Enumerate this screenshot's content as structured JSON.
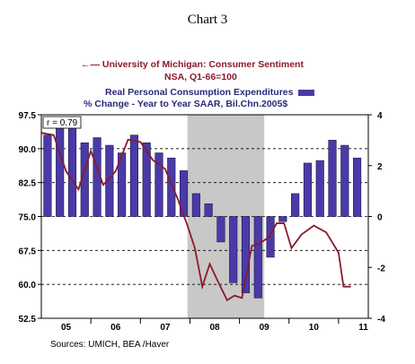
{
  "title": "Chart 3",
  "legend": {
    "line_label": "University of Michigan: Consumer Sentiment",
    "line_sub": "NSA, Q1-66=100",
    "bar_label": "Real Personal Consumption Expenditures",
    "bar_sub": "% Change - Year to Year   SAAR, Bil.Chn.2005$"
  },
  "source": "Sources:  UMICH, BEA /Haver",
  "annotation": "r = 0.79",
  "colors": {
    "line": "#8b1a2b",
    "bar": "#4a3aa8",
    "recession": "#c8c8c8"
  },
  "chart_data": {
    "type": "bar",
    "x_labels": [
      "05",
      "06",
      "07",
      "08",
      "09",
      "10",
      "11"
    ],
    "left_axis": {
      "ticks": [
        "97.5",
        "90.0",
        "82.5",
        "75.0",
        "67.5",
        "60.0",
        "52.5"
      ],
      "ylim": [
        52.5,
        97.5
      ]
    },
    "right_axis": {
      "ticks": [
        "4",
        "2",
        "0",
        "-2",
        "-4"
      ],
      "ylim": [
        -4,
        4
      ]
    },
    "recession_shading": {
      "start": 2007.95,
      "end": 2009.5
    },
    "series": [
      {
        "name": "Real Personal Consumption Expenditures",
        "type": "bar",
        "axis": "right",
        "x": [
          2005.125,
          2005.375,
          2005.625,
          2005.875,
          2006.125,
          2006.375,
          2006.625,
          2006.875,
          2007.125,
          2007.375,
          2007.625,
          2007.875,
          2008.125,
          2008.375,
          2008.625,
          2008.875,
          2009.125,
          2009.375,
          2009.625,
          2009.875,
          2010.125,
          2010.375,
          2010.625,
          2010.875,
          2011.125,
          2011.375
        ],
        "values": [
          3.2,
          3.5,
          3.5,
          2.9,
          3.1,
          2.8,
          2.5,
          3.2,
          2.9,
          2.5,
          2.3,
          1.8,
          0.9,
          0.5,
          -1.0,
          -2.6,
          -3.0,
          -3.2,
          -1.6,
          -0.2,
          0.9,
          2.1,
          2.2,
          3.0,
          2.8,
          2.3
        ]
      },
      {
        "name": "University of Michigan: Consumer Sentiment",
        "type": "line",
        "axis": "left",
        "x": [
          2005.0,
          2005.25,
          2005.5,
          2005.75,
          2006.0,
          2006.25,
          2006.5,
          2006.75,
          2007.0,
          2007.25,
          2007.5,
          2007.75,
          2007.95,
          2008.1,
          2008.25,
          2008.4,
          2008.55,
          2008.75,
          2008.9,
          2009.05,
          2009.25,
          2009.4,
          2009.6,
          2009.75,
          2009.9,
          2010.05,
          2010.25,
          2010.5,
          2010.75,
          2011.0,
          2011.1,
          2011.25
        ],
        "values": [
          93.5,
          93.0,
          85.0,
          81.0,
          89.5,
          82.0,
          85.0,
          92.0,
          91.5,
          87.5,
          85.5,
          79.0,
          73.0,
          68.0,
          59.5,
          64.5,
          61.0,
          56.5,
          57.5,
          57.0,
          68.5,
          69.0,
          70.5,
          73.5,
          73.5,
          68.0,
          71.0,
          73.0,
          71.5,
          67.0,
          59.5,
          59.5
        ]
      }
    ]
  }
}
